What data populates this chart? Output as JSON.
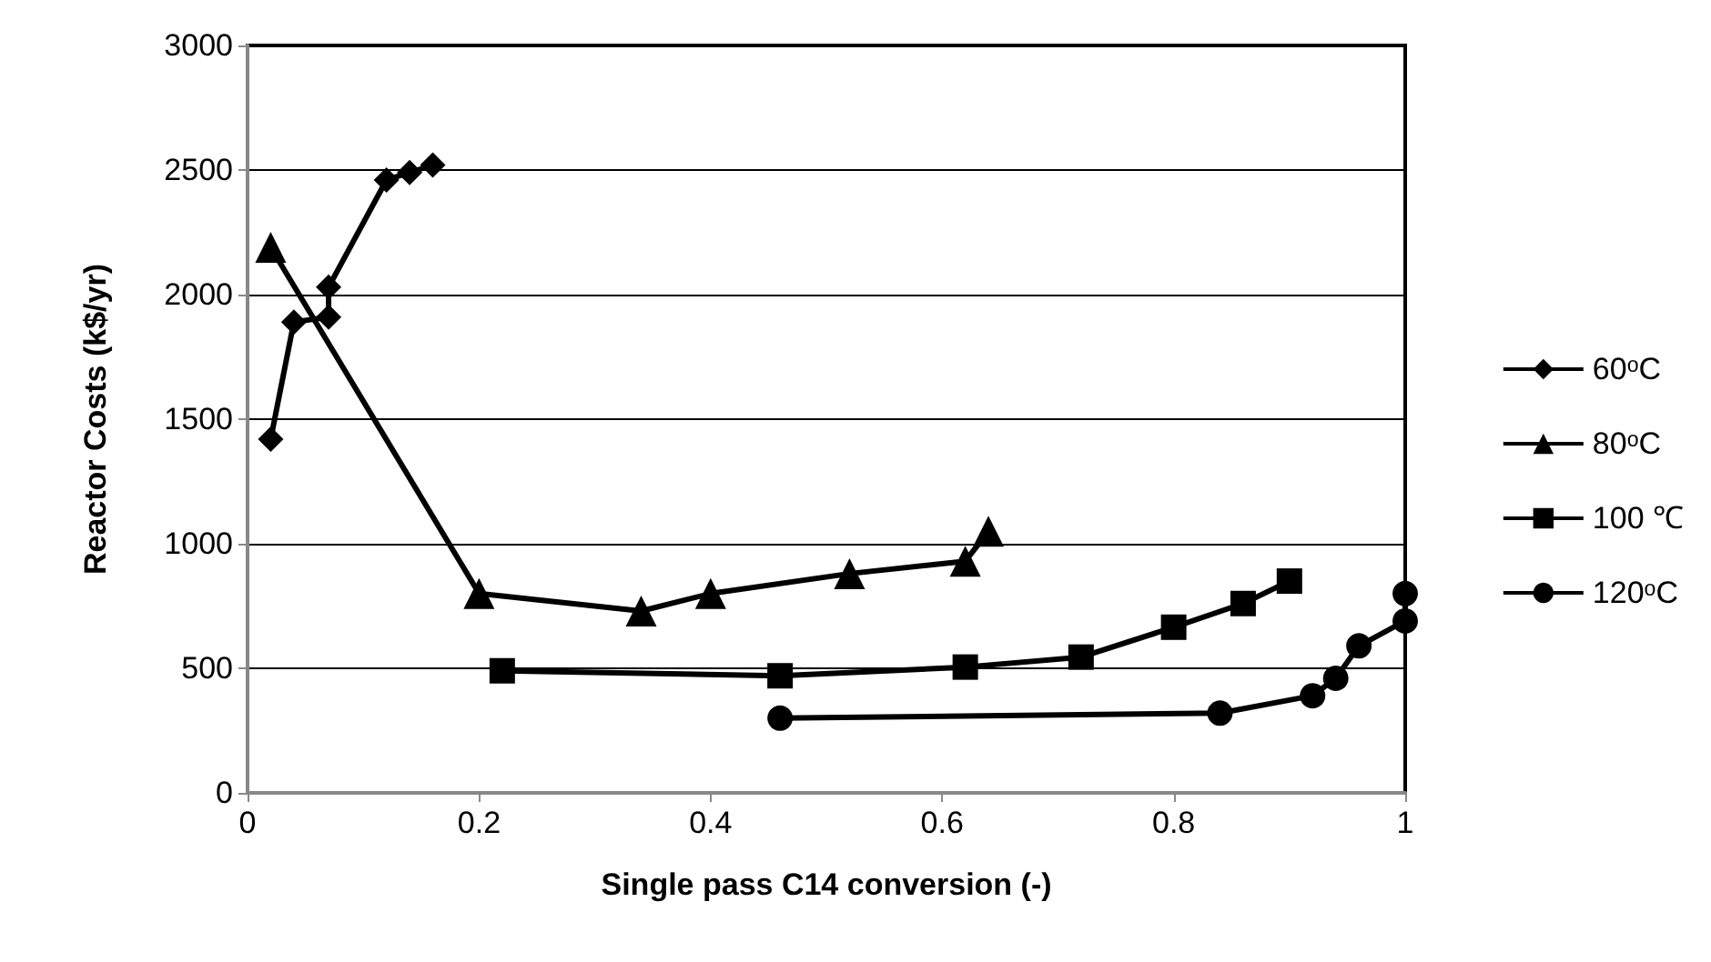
{
  "chart_data": {
    "type": "line",
    "xlabel": "Single pass C14 conversion (-)",
    "ylabel": "Reactor Costs (k$/yr)",
    "xlim": [
      0,
      1
    ],
    "xticks": [
      0,
      0.2,
      0.4,
      0.6,
      0.8,
      1
    ],
    "ylim": [
      0,
      3000
    ],
    "yticks": [
      0,
      500,
      1000,
      1500,
      2000,
      2500,
      3000
    ],
    "grid": "y",
    "legend": "right",
    "series": [
      {
        "name": "60ᵒC",
        "color": "#000000",
        "marker": "diamond",
        "x": [
          0.02,
          0.04,
          0.07,
          0.07,
          0.12,
          0.14,
          0.16
        ],
        "values": [
          1420,
          1890,
          1910,
          2030,
          2460,
          2490,
          2520
        ]
      },
      {
        "name": "80ᵒC",
        "color": "#000000",
        "marker": "triangle",
        "x": [
          0.02,
          0.2,
          0.34,
          0.4,
          0.52,
          0.62,
          0.64
        ],
        "values": [
          2190,
          800,
          730,
          800,
          880,
          930,
          1050
        ]
      },
      {
        "name": "100 ℃",
        "color": "#000000",
        "marker": "square",
        "x": [
          0.22,
          0.46,
          0.62,
          0.72,
          0.8,
          0.86,
          0.9
        ],
        "values": [
          490,
          470,
          505,
          545,
          665,
          760,
          850
        ]
      },
      {
        "name": "120ᵒC",
        "color": "#000000",
        "marker": "circle",
        "x": [
          0.46,
          0.84,
          0.92,
          0.94,
          0.96,
          1.0,
          1.0
        ],
        "values": [
          300,
          320,
          390,
          460,
          590,
          690,
          800
        ]
      }
    ]
  }
}
